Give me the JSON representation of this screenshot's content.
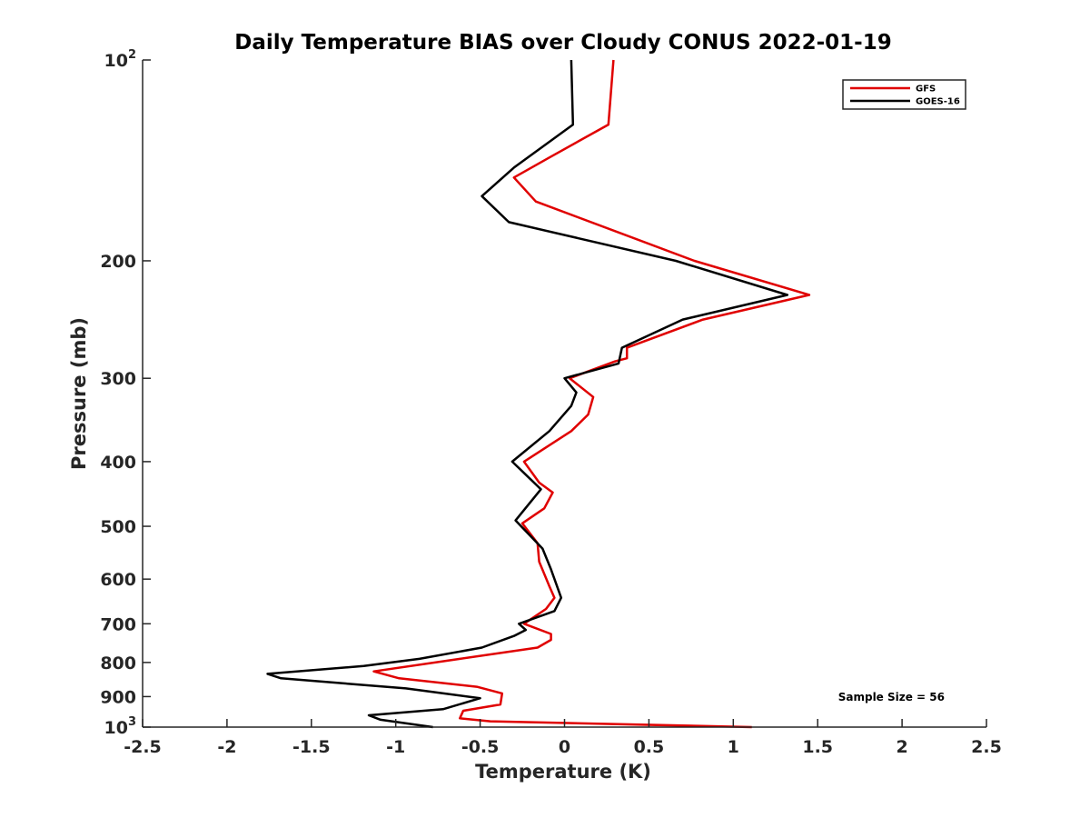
{
  "chart_data": {
    "type": "line",
    "title": "Daily Temperature BIAS over Cloudy CONUS 2022-01-19",
    "xlabel": "Temperature (K)",
    "ylabel": "Pressure (mb)",
    "xlim": [
      -2.5,
      2.5
    ],
    "ylim": [
      100,
      1000
    ],
    "yscale": "log",
    "yaxis_reversed": true,
    "grid": false,
    "x_ticks": [
      "-2.5",
      "-2",
      "-1.5",
      "-1",
      "-0.5",
      "0",
      "0.5",
      "1",
      "1.5",
      "2",
      "2.5"
    ],
    "x_tick_values": [
      -2.5,
      -2,
      -1.5,
      -1,
      -0.5,
      0,
      0.5,
      1,
      1.5,
      2,
      2.5
    ],
    "y_ticks": [
      {
        "value": 100,
        "base": "10",
        "exp": "2"
      },
      {
        "value": 200,
        "label": "200"
      },
      {
        "value": 300,
        "label": "300"
      },
      {
        "value": 400,
        "label": "400"
      },
      {
        "value": 500,
        "label": "500"
      },
      {
        "value": 600,
        "label": "600"
      },
      {
        "value": 700,
        "label": "700"
      },
      {
        "value": 800,
        "label": "800"
      },
      {
        "value": 900,
        "label": "900"
      },
      {
        "value": 1000,
        "base": "10",
        "exp": "3"
      }
    ],
    "legend_position": "top-right",
    "series": [
      {
        "name": "GFS",
        "color": "#e00000",
        "points": [
          [
            0.29,
            100
          ],
          [
            0.26,
            125
          ],
          [
            -0.09,
            140
          ],
          [
            -0.3,
            150
          ],
          [
            -0.17,
            163
          ],
          [
            0.77,
            200
          ],
          [
            1.45,
            225
          ],
          [
            0.82,
            245
          ],
          [
            0.37,
            270
          ],
          [
            0.37,
            280
          ],
          [
            0.3,
            283
          ],
          [
            0.03,
            300
          ],
          [
            0.17,
            320
          ],
          [
            0.14,
            340
          ],
          [
            0.04,
            360
          ],
          [
            -0.24,
            400
          ],
          [
            -0.15,
            430
          ],
          [
            -0.07,
            445
          ],
          [
            -0.12,
            470
          ],
          [
            -0.25,
            495
          ],
          [
            -0.16,
            530
          ],
          [
            -0.15,
            565
          ],
          [
            -0.09,
            615
          ],
          [
            -0.06,
            640
          ],
          [
            -0.11,
            665
          ],
          [
            -0.24,
            700
          ],
          [
            -0.08,
            725
          ],
          [
            -0.08,
            740
          ],
          [
            -0.16,
            760
          ],
          [
            -0.62,
            790
          ],
          [
            -1.13,
            825
          ],
          [
            -0.98,
            845
          ],
          [
            -0.52,
            870
          ],
          [
            -0.37,
            890
          ],
          [
            -0.38,
            925
          ],
          [
            -0.6,
            945
          ],
          [
            -0.62,
            970
          ],
          [
            -0.44,
            980
          ],
          [
            1.11,
            1000
          ]
        ]
      },
      {
        "name": "GOES-16",
        "color": "#000000",
        "points": [
          [
            0.04,
            100
          ],
          [
            0.05,
            125
          ],
          [
            -0.3,
            145
          ],
          [
            -0.49,
            160
          ],
          [
            -0.33,
            175
          ],
          [
            0.66,
            200
          ],
          [
            1.32,
            225
          ],
          [
            0.7,
            245
          ],
          [
            0.34,
            270
          ],
          [
            0.32,
            285
          ],
          [
            0.0,
            300
          ],
          [
            0.07,
            315
          ],
          [
            0.04,
            330
          ],
          [
            -0.09,
            360
          ],
          [
            -0.31,
            400
          ],
          [
            -0.14,
            440
          ],
          [
            -0.29,
            490
          ],
          [
            -0.13,
            540
          ],
          [
            -0.08,
            580
          ],
          [
            -0.02,
            640
          ],
          [
            -0.06,
            670
          ],
          [
            -0.27,
            700
          ],
          [
            -0.23,
            715
          ],
          [
            -0.3,
            730
          ],
          [
            -0.49,
            760
          ],
          [
            -0.86,
            790
          ],
          [
            -1.19,
            810
          ],
          [
            -1.76,
            832
          ],
          [
            -1.68,
            845
          ],
          [
            -0.94,
            875
          ],
          [
            -0.5,
            905
          ],
          [
            -0.72,
            940
          ],
          [
            -1.16,
            960
          ],
          [
            -1.09,
            975
          ],
          [
            -0.78,
            1000
          ]
        ]
      }
    ],
    "annotations": [
      "Sample Size = 56"
    ]
  }
}
